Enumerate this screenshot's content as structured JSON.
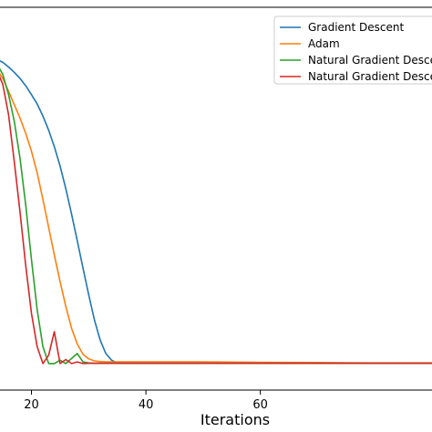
{
  "chart_data": {
    "type": "line",
    "title": "",
    "xlabel": "Iterations",
    "ylabel": "",
    "xlim": [
      14.5,
      90
    ],
    "ylim": [
      -0.03,
      1.0
    ],
    "xticks": [
      20,
      40,
      60
    ],
    "grid": false,
    "legend_position": "top-right",
    "series": [
      {
        "name": "Gradient Descent",
        "color": "#1f77b4",
        "x": [
          14,
          15,
          16,
          17,
          18,
          19,
          20,
          21,
          22,
          23,
          24,
          25,
          26,
          27,
          28,
          29,
          30,
          31,
          32,
          33,
          34,
          35,
          36,
          40,
          50,
          60,
          70,
          80,
          90
        ],
        "y": [
          0.904,
          0.896,
          0.882,
          0.866,
          0.848,
          0.826,
          0.8,
          0.772,
          0.736,
          0.694,
          0.645,
          0.588,
          0.52,
          0.445,
          0.365,
          0.285,
          0.205,
          0.13,
          0.07,
          0.03,
          0.01,
          0.002,
          0.001,
          0.001,
          0.001,
          0.001,
          0.001,
          0.001,
          0.001
        ]
      },
      {
        "name": "Adam",
        "color": "#ff7f0e",
        "x": [
          14,
          15,
          16,
          17,
          18,
          19,
          20,
          21,
          22,
          23,
          24,
          25,
          26,
          27,
          28,
          29,
          30,
          31,
          32,
          33,
          34,
          35,
          40,
          50,
          60,
          70,
          80,
          90
        ],
        "y": [
          0.874,
          0.848,
          0.81,
          0.77,
          0.73,
          0.684,
          0.632,
          0.567,
          0.488,
          0.405,
          0.323,
          0.244,
          0.17,
          0.105,
          0.058,
          0.028,
          0.014,
          0.008,
          0.006,
          0.005,
          0.005,
          0.005,
          0.005,
          0.005,
          0.004,
          0.003,
          0.002,
          0.002
        ]
      },
      {
        "name": "Natural Gradient Descent",
        "color": "#2ca02c",
        "x": [
          14,
          15,
          16,
          17,
          18,
          19,
          20,
          21,
          22,
          23,
          24,
          25,
          26,
          27,
          28,
          29,
          30,
          31,
          32,
          35,
          40,
          50,
          60,
          70,
          80,
          90
        ],
        "y": [
          0.89,
          0.86,
          0.8,
          0.72,
          0.61,
          0.47,
          0.31,
          0.16,
          0.05,
          0.0,
          0.0,
          0.01,
          0.0,
          0.015,
          0.03,
          0.005,
          0.002,
          0.001,
          0.001,
          0.001,
          0.001,
          0.001,
          0.001,
          0.001,
          0.001,
          0.001
        ]
      },
      {
        "name": "Natural Gradient Descent",
        "color": "#d62728",
        "x": [
          14,
          15,
          16,
          17,
          18,
          19,
          20,
          21,
          22,
          23,
          24,
          25,
          26,
          27,
          28,
          29,
          30,
          35,
          40,
          50,
          60,
          70,
          80,
          90
        ],
        "y": [
          0.87,
          0.83,
          0.74,
          0.6,
          0.45,
          0.29,
          0.15,
          0.05,
          0.0,
          0.025,
          0.095,
          0.0,
          0.012,
          0.0,
          0.005,
          0.0,
          0.001,
          0.001,
          0.001,
          0.001,
          0.001,
          0.001,
          0.001,
          0.001
        ]
      }
    ]
  }
}
